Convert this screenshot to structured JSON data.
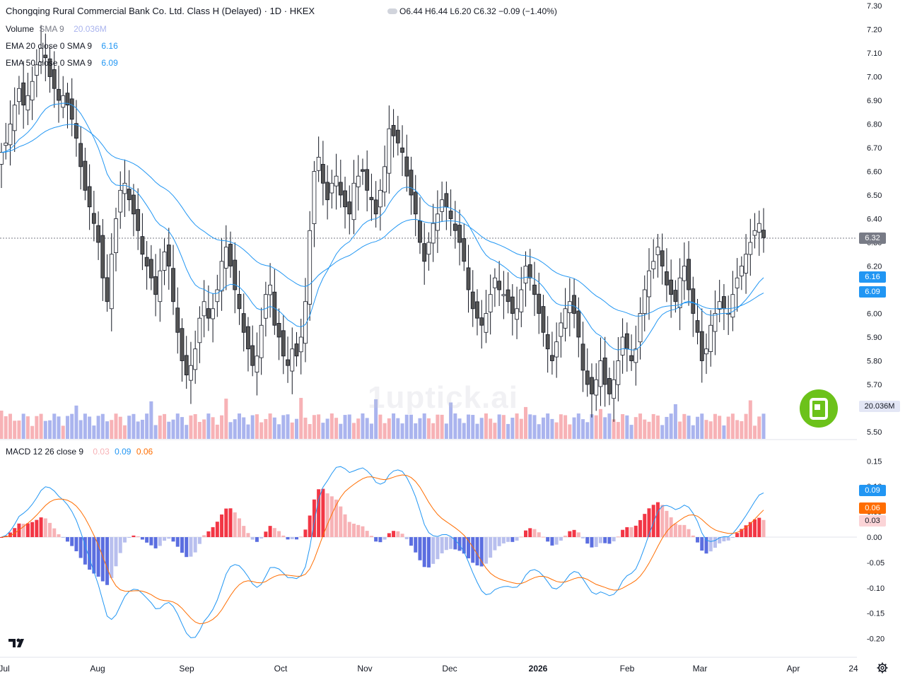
{
  "header": {
    "title": "Chongqing Rural Commercial Bank Co. Ltd. Class H (Delayed) · 1D · HKEX",
    "ohlc": "O6.44 H6.44 L6.20 C6.32 −0.09 (−1.40%)"
  },
  "legend": {
    "volume_label": "Volume",
    "volume_params": "SMA 9",
    "volume_value": "20.036M",
    "ema20_label": "EMA 20 close 0 SMA 9",
    "ema20_value": "6.16",
    "ema50_label": "EMA 50 close 0 SMA 9",
    "ema50_value": "6.09",
    "macd_label": "MACD 12 26 close 9",
    "macd_hist": "0.03",
    "macd_line": "0.09",
    "macd_signal": "0.06"
  },
  "price_axis_ticks": [
    "7.30",
    "7.20",
    "7.10",
    "7.00",
    "6.90",
    "6.80",
    "6.70",
    "6.60",
    "6.50",
    "6.40",
    "6.30",
    "6.20",
    "6.10",
    "6.00",
    "5.90",
    "5.80",
    "5.70",
    "5.60",
    "5.50"
  ],
  "macd_axis_ticks": [
    "0.15",
    "0.10",
    "0.05",
    "0.00",
    "-0.05",
    "-0.10",
    "-0.15",
    "-0.20"
  ],
  "time_axis_labels": [
    "Jul",
    "Aug",
    "Sep",
    "Oct",
    "Nov",
    "Dec",
    "2026",
    "Feb",
    "Mar",
    "Apr",
    "24"
  ],
  "tags": {
    "last_price": "6.32",
    "ema20": "6.16",
    "ema50": "6.09",
    "volume": "20.036M",
    "macd_line": "0.09",
    "macd_signal": "0.06",
    "macd_hist": "0.03"
  },
  "watermark": "1uptick.ai",
  "colors": {
    "up": "#ffffff",
    "down": "#555555",
    "wick": "#131722",
    "ema20": "#2196f3",
    "ema50": "#2196f3",
    "vol_up": "#f7b2b6",
    "vol_down": "#aab4ee",
    "macd_line": "#2196f3",
    "macd_signal": "#ff6d00",
    "hist_pos_strong": "#f23645",
    "hist_pos_weak": "#f7b2b6",
    "hist_neg_strong": "#5b6ee0",
    "hist_neg_weak": "#b8bfee",
    "brand_green": "#6cc21a"
  },
  "chart_data": {
    "type": "candlestick",
    "title": "Chongqing Rural Commercial Bank Co. Ltd. Class H (Delayed) · 1D · HKEX",
    "ylim": [
      5.45,
      7.32
    ],
    "macd_ylim": [
      -0.21,
      0.16
    ],
    "close": [
      6.68,
      6.72,
      6.8,
      6.88,
      6.95,
      6.88,
      6.92,
      6.98,
      7.05,
      7.12,
      7.08,
      7.0,
      6.95,
      6.9,
      6.92,
      6.88,
      6.82,
      6.74,
      6.62,
      6.52,
      6.45,
      6.38,
      6.3,
      6.15,
      6.05,
      6.25,
      6.4,
      6.52,
      6.55,
      6.48,
      6.42,
      6.35,
      6.25,
      6.2,
      6.15,
      6.08,
      6.18,
      6.26,
      6.2,
      6.05,
      5.92,
      5.8,
      5.74,
      5.78,
      5.85,
      5.98,
      6.05,
      5.98,
      6.02,
      6.1,
      6.22,
      6.28,
      6.2,
      6.1,
      6.02,
      5.92,
      5.85,
      5.78,
      5.82,
      5.95,
      6.08,
      6.12,
      5.95,
      5.9,
      5.82,
      5.78,
      5.85,
      5.82,
      5.9,
      6.05,
      6.35,
      6.6,
      6.66,
      6.55,
      6.48,
      6.55,
      6.58,
      6.5,
      6.45,
      6.42,
      6.55,
      6.58,
      6.6,
      6.52,
      6.48,
      6.42,
      6.52,
      6.62,
      6.78,
      6.75,
      6.72,
      6.68,
      6.58,
      6.5,
      6.42,
      6.3,
      6.22,
      6.3,
      6.38,
      6.42,
      6.48,
      6.45,
      6.4,
      6.35,
      6.3,
      6.22,
      6.1,
      6.02,
      5.98,
      5.95,
      6.0,
      6.08,
      6.15,
      6.1,
      6.08,
      6.05,
      6.0,
      6.02,
      6.1,
      6.2,
      6.15,
      6.08,
      6.0,
      5.92,
      5.85,
      5.8,
      5.88,
      5.96,
      6.02,
      6.05,
      6.0,
      5.9,
      5.76,
      5.7,
      5.66,
      5.72,
      5.8,
      5.7,
      5.66,
      5.72,
      5.8,
      5.9,
      5.85,
      5.8,
      5.85,
      6.0,
      6.1,
      6.18,
      6.22,
      6.28,
      6.2,
      6.12,
      6.08,
      6.05,
      6.15,
      6.2,
      6.1,
      6.0,
      5.92,
      5.8,
      5.85,
      5.95,
      6.0,
      6.05,
      6.02,
      6.0,
      6.08,
      6.15,
      6.2,
      6.25,
      6.3,
      6.35,
      6.38,
      6.32
    ]
  }
}
